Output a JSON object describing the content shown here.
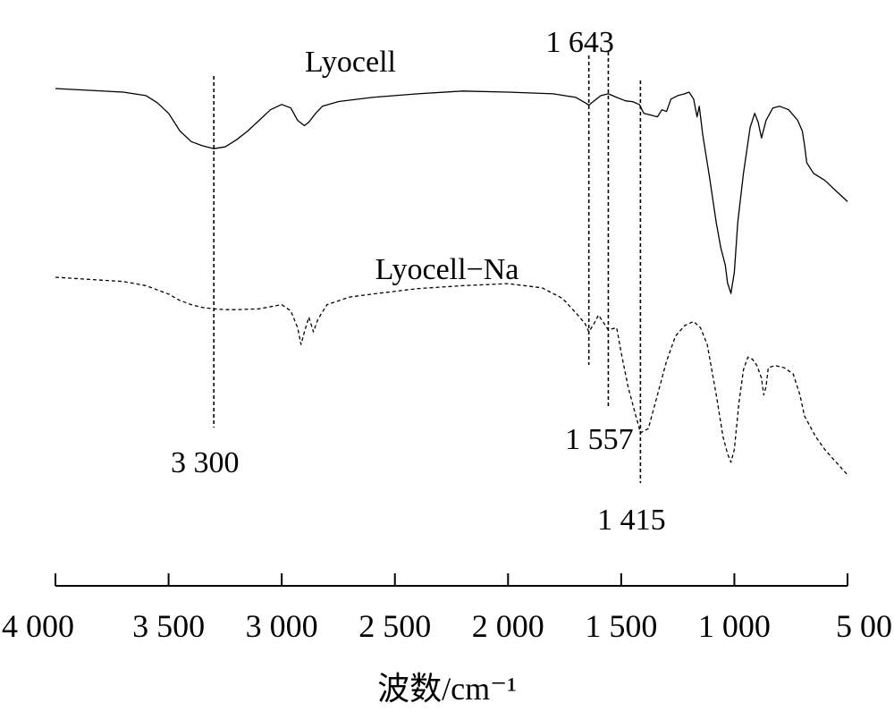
{
  "chart_data": {
    "type": "line",
    "title": "",
    "xlabel": "波数/cm⁻¹",
    "ylabel": "",
    "xlim": [
      4000,
      500
    ],
    "x_reversed": true,
    "y_ticks_shown": false,
    "grid": false,
    "x_tick_values": [
      4000,
      3500,
      3000,
      2500,
      2000,
      1500,
      1000,
      500
    ],
    "x_tick_labels": [
      "4 000",
      "3 500",
      "3 000",
      "2 500",
      "2 000",
      "1 500",
      "1 000",
      "5 00"
    ],
    "series": [
      {
        "name": "Lyocell",
        "dash": "solid",
        "x": [
          4000,
          3850,
          3700,
          3600,
          3550,
          3500,
          3450,
          3400,
          3350,
          3300,
          3250,
          3200,
          3150,
          3100,
          3050,
          3000,
          2960,
          2930,
          2900,
          2880,
          2850,
          2820,
          2750,
          2600,
          2400,
          2200,
          2000,
          1800,
          1700,
          1660,
          1643,
          1620,
          1590,
          1557,
          1520,
          1480,
          1450,
          1420,
          1400,
          1370,
          1340,
          1320,
          1300,
          1280,
          1250,
          1220,
          1200,
          1180,
          1165,
          1155,
          1140,
          1110,
          1080,
          1060,
          1040,
          1030,
          1015,
          1000,
          985,
          960,
          930,
          910,
          895,
          880,
          860,
          830,
          800,
          760,
          720,
          700,
          690,
          680,
          650,
          600,
          550,
          500
        ],
        "y": [
          100,
          99.5,
          99,
          98,
          96,
          93,
          88,
          85,
          83.8,
          83,
          83.5,
          85.5,
          88,
          91,
          94,
          95.5,
          94.5,
          91,
          89.5,
          90.5,
          93,
          95,
          96.3,
          97.5,
          98.5,
          99.3,
          99,
          98.5,
          97.5,
          96,
          95.3,
          96.5,
          98,
          98.5,
          97.5,
          96.5,
          96.3,
          95.5,
          93,
          92.5,
          92,
          94,
          93.5,
          97,
          98,
          98.5,
          99,
          97,
          92,
          95,
          87,
          75,
          62,
          55,
          50,
          45,
          42,
          48,
          62,
          76,
          89,
          93,
          90.5,
          86,
          91,
          94.5,
          95,
          94,
          91,
          88,
          84,
          79,
          76,
          74,
          71,
          68
        ]
      },
      {
        "name": "Lyocell−Na",
        "dash": "dashed",
        "x": [
          4000,
          3850,
          3700,
          3600,
          3500,
          3450,
          3400,
          3350,
          3300,
          3250,
          3200,
          3100,
          3000,
          2960,
          2930,
          2915,
          2900,
          2880,
          2860,
          2840,
          2800,
          2700,
          2600,
          2400,
          2200,
          2000,
          1850,
          1760,
          1700,
          1660,
          1643,
          1620,
          1600,
          1557,
          1520,
          1500,
          1470,
          1440,
          1415,
          1380,
          1340,
          1300,
          1260,
          1220,
          1200,
          1180,
          1150,
          1120,
          1080,
          1050,
          1030,
          1015,
          1000,
          980,
          960,
          940,
          920,
          900,
          880,
          870,
          860,
          850,
          820,
          780,
          740,
          710,
          690,
          670,
          640,
          600,
          550,
          500
        ],
        "y": [
          100,
          99.5,
          99,
          98,
          96,
          94.5,
          93.5,
          92.8,
          92.5,
          92.3,
          92.3,
          92.5,
          93.5,
          92,
          88,
          84,
          87,
          90.5,
          87,
          90,
          93.5,
          95.3,
          96,
          97.3,
          98,
          98.5,
          97.5,
          95,
          91.5,
          89,
          87,
          89,
          91,
          87.5,
          88,
          82,
          74,
          68,
          63,
          64,
          72,
          80,
          86,
          88.5,
          89,
          89.5,
          88,
          84,
          72,
          62,
          58,
          56,
          59,
          70,
          78,
          81,
          80.5,
          79,
          76,
          72,
          74,
          78.5,
          79,
          78.5,
          77,
          72,
          67,
          65,
          62,
          59,
          56,
          53
        ]
      }
    ],
    "annotations": [
      {
        "text": "3 300",
        "x": 3300,
        "target": "Lyocell"
      },
      {
        "text": "1 643",
        "x": 1643,
        "target": "Lyocell"
      },
      {
        "text": "1 557",
        "x": 1557,
        "target": "Lyocell−Na"
      },
      {
        "text": "1 415",
        "x": 1415,
        "target": "Lyocell−Na"
      }
    ]
  }
}
